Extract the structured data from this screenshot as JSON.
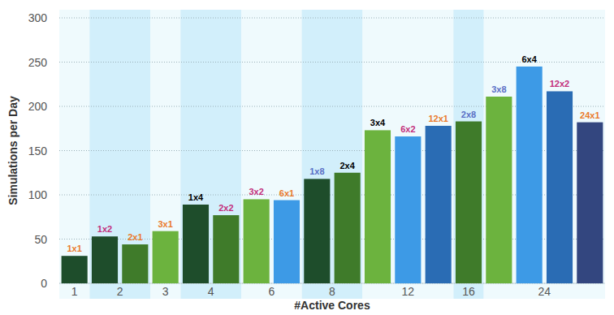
{
  "chart_data": {
    "type": "bar",
    "x_label": "#Active Cores",
    "y_label": "Simulations per Day",
    "categories": [
      "1x1",
      "1x2",
      "2x1",
      "3x1",
      "1x4",
      "2x2",
      "3x2",
      "6x1",
      "1x8",
      "2x4",
      "3x4",
      "6x2",
      "12x1",
      "2x8",
      "3x8",
      "6x4",
      "12x2",
      "24x1"
    ],
    "groups": [
      "1",
      "2",
      "2",
      "3",
      "4",
      "4",
      "6",
      "6",
      "8",
      "8",
      "12",
      "12",
      "12",
      "16",
      "24",
      "24",
      "24",
      "24"
    ],
    "values": [
      31,
      53,
      44,
      59,
      89,
      77,
      95,
      94,
      118,
      125,
      173,
      166,
      178,
      183,
      211,
      245,
      217,
      182
    ],
    "colors": [
      "#1e4d2b",
      "#1e4d2b",
      "#3f7b2a",
      "#6cb33e",
      "#1e4d2b",
      "#3f7b2a",
      "#6cb33e",
      "#3d9ae6",
      "#1e4d2b",
      "#3f7b2a",
      "#6cb33e",
      "#3d9ae6",
      "#2a6cb4",
      "#3f7b2a",
      "#6cb33e",
      "#3d9ae6",
      "#2a6cb4",
      "#33467f"
    ],
    "label_colors": [
      "#ea7a2c",
      "#c3307c",
      "#ea7a2c",
      "#ea7a2c",
      "#000000",
      "#c3307c",
      "#c3307c",
      "#ea7a2c",
      "#5a6fc6",
      "#000000",
      "#000000",
      "#c3307c",
      "#ea7a2c",
      "#5a6fc6",
      "#5a6fc6",
      "#000000",
      "#c3307c",
      "#ea7a2c"
    ],
    "ylim": [
      0,
      300
    ],
    "yticks": [
      0,
      50,
      100,
      150,
      200,
      250,
      300
    ],
    "grid": true
  }
}
